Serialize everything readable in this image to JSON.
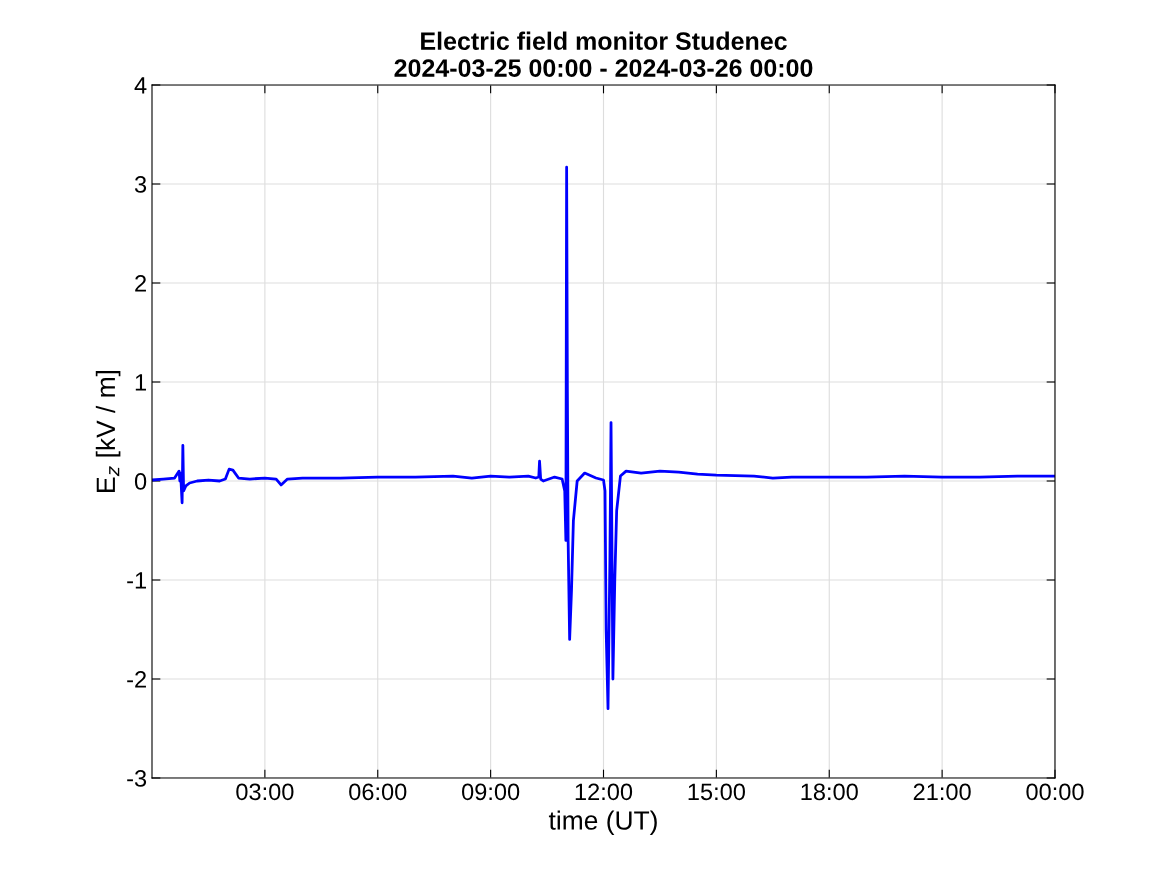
{
  "chart_data": {
    "type": "line",
    "title": "Electric field monitor Studenec\n2024-03-25 00:00 - 2024-03-26 00:00",
    "xlabel": "time (UT)",
    "ylabel": "E$_{z}$ [kV / m]",
    "xlim": [
      0,
      24
    ],
    "xticks": [
      {
        "value": 3,
        "label": "03:00"
      },
      {
        "value": 6,
        "label": "06:00"
      },
      {
        "value": 9,
        "label": "09:00"
      },
      {
        "value": 12,
        "label": "12:00"
      },
      {
        "value": 15,
        "label": "15:00"
      },
      {
        "value": 18,
        "label": "18:00"
      },
      {
        "value": 21,
        "label": "21:00"
      },
      {
        "value": 24,
        "label": "00:00"
      }
    ],
    "ylim": [
      -3,
      4
    ],
    "yticks": [
      -3,
      -2,
      -1,
      0,
      1,
      2,
      3,
      4
    ],
    "grid": true,
    "series": [
      {
        "color": "#0000ff",
        "x": [
          0,
          0.3,
          0.6,
          0.72,
          0.74,
          0.76,
          0.8,
          0.82,
          0.84,
          0.9,
          1.0,
          1.2,
          1.5,
          1.8,
          1.95,
          2.05,
          2.15,
          2.3,
          2.6,
          3.0,
          3.3,
          3.43,
          3.6,
          4.0,
          5.0,
          6.0,
          7.0,
          8.0,
          8.5,
          9.0,
          9.5,
          10.0,
          10.2,
          10.28,
          10.3,
          10.33,
          10.4,
          10.7,
          10.9,
          10.97,
          11.0,
          11.02,
          11.04,
          11.06,
          11.1,
          11.15,
          11.2,
          11.3,
          11.5,
          11.8,
          12.0,
          12.04,
          12.07,
          12.12,
          12.17,
          12.2,
          12.25,
          12.3,
          12.35,
          12.45,
          12.6,
          13.0,
          13.5,
          14.0,
          14.5,
          15.0,
          16.0,
          16.5,
          17.0,
          18.0,
          19.0,
          20.0,
          21.0,
          22.0,
          23.0,
          24.0
        ],
        "values": [
          0.01,
          0.02,
          0.03,
          0.1,
          0.0,
          0.08,
          -0.22,
          0.36,
          -0.1,
          -0.05,
          -0.02,
          0.0,
          0.01,
          0.0,
          0.02,
          0.12,
          0.11,
          0.03,
          0.02,
          0.03,
          0.02,
          -0.04,
          0.02,
          0.03,
          0.03,
          0.04,
          0.04,
          0.05,
          0.03,
          0.05,
          0.04,
          0.05,
          0.03,
          0.04,
          0.2,
          0.02,
          0.0,
          0.04,
          0.02,
          -0.1,
          -0.6,
          3.17,
          0.9,
          -0.6,
          -1.6,
          -1.1,
          -0.4,
          0.0,
          0.08,
          0.03,
          0.01,
          -0.1,
          -1.5,
          -2.3,
          -0.8,
          0.59,
          -2.0,
          -1.0,
          -0.3,
          0.05,
          0.1,
          0.08,
          0.1,
          0.09,
          0.07,
          0.06,
          0.05,
          0.03,
          0.04,
          0.04,
          0.04,
          0.05,
          0.04,
          0.04,
          0.05,
          0.05
        ]
      }
    ]
  }
}
